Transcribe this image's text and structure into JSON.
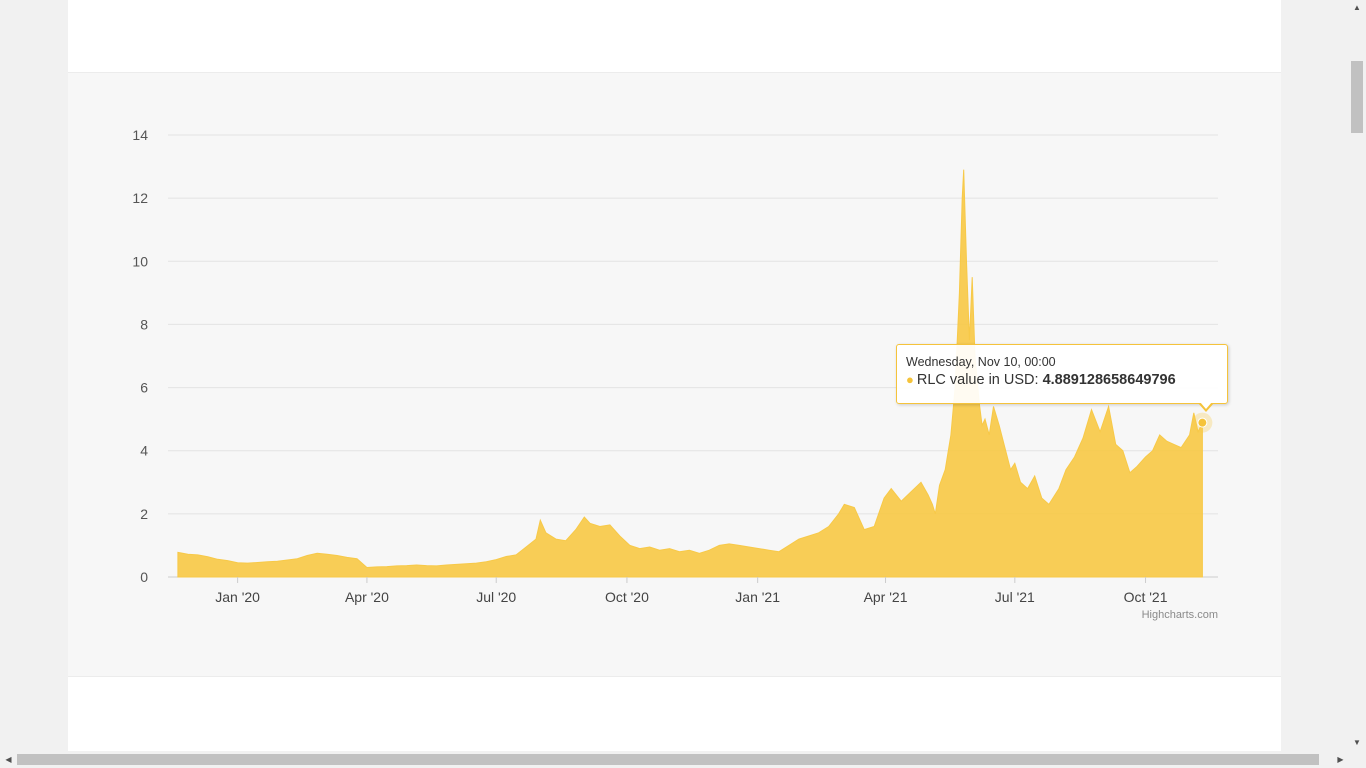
{
  "chart_data": {
    "type": "area",
    "title": "",
    "xlabel": "",
    "ylabel": "",
    "series": [
      {
        "name": "RLC value in USD",
        "color": "#f7c948",
        "points": [
          [
            "2019-11-20",
            0.78
          ],
          [
            "2019-11-27",
            0.72
          ],
          [
            "2019-12-04",
            0.7
          ],
          [
            "2019-12-11",
            0.64
          ],
          [
            "2019-12-18",
            0.56
          ],
          [
            "2019-12-25",
            0.52
          ],
          [
            "2020-01-01",
            0.45
          ],
          [
            "2020-01-08",
            0.44
          ],
          [
            "2020-01-15",
            0.46
          ],
          [
            "2020-01-22",
            0.48
          ],
          [
            "2020-01-29",
            0.5
          ],
          [
            "2020-02-05",
            0.54
          ],
          [
            "2020-02-12",
            0.58
          ],
          [
            "2020-02-19",
            0.68
          ],
          [
            "2020-02-26",
            0.75
          ],
          [
            "2020-03-04",
            0.72
          ],
          [
            "2020-03-11",
            0.68
          ],
          [
            "2020-03-18",
            0.62
          ],
          [
            "2020-03-25",
            0.58
          ],
          [
            "2020-04-01",
            0.3
          ],
          [
            "2020-04-08",
            0.32
          ],
          [
            "2020-04-15",
            0.33
          ],
          [
            "2020-04-22",
            0.35
          ],
          [
            "2020-04-29",
            0.36
          ],
          [
            "2020-05-06",
            0.38
          ],
          [
            "2020-05-13",
            0.36
          ],
          [
            "2020-05-20",
            0.35
          ],
          [
            "2020-05-27",
            0.38
          ],
          [
            "2020-06-03",
            0.4
          ],
          [
            "2020-06-10",
            0.42
          ],
          [
            "2020-06-17",
            0.44
          ],
          [
            "2020-06-24",
            0.48
          ],
          [
            "2020-07-01",
            0.55
          ],
          [
            "2020-07-08",
            0.65
          ],
          [
            "2020-07-15",
            0.7
          ],
          [
            "2020-07-22",
            0.95
          ],
          [
            "2020-07-29",
            1.2
          ],
          [
            "2020-08-01",
            1.8
          ],
          [
            "2020-08-05",
            1.4
          ],
          [
            "2020-08-12",
            1.2
          ],
          [
            "2020-08-19",
            1.15
          ],
          [
            "2020-08-26",
            1.5
          ],
          [
            "2020-09-01",
            1.9
          ],
          [
            "2020-09-05",
            1.7
          ],
          [
            "2020-09-12",
            1.6
          ],
          [
            "2020-09-19",
            1.65
          ],
          [
            "2020-09-26",
            1.3
          ],
          [
            "2020-10-03",
            1.0
          ],
          [
            "2020-10-10",
            0.9
          ],
          [
            "2020-10-17",
            0.95
          ],
          [
            "2020-10-24",
            0.85
          ],
          [
            "2020-10-31",
            0.9
          ],
          [
            "2020-11-07",
            0.8
          ],
          [
            "2020-11-14",
            0.85
          ],
          [
            "2020-11-21",
            0.75
          ],
          [
            "2020-11-28",
            0.85
          ],
          [
            "2020-12-05",
            1.0
          ],
          [
            "2020-12-12",
            1.05
          ],
          [
            "2020-12-19",
            1.0
          ],
          [
            "2020-12-26",
            0.95
          ],
          [
            "2021-01-02",
            0.9
          ],
          [
            "2021-01-09",
            0.85
          ],
          [
            "2021-01-16",
            0.8
          ],
          [
            "2021-01-23",
            1.0
          ],
          [
            "2021-01-30",
            1.2
          ],
          [
            "2021-02-06",
            1.3
          ],
          [
            "2021-02-13",
            1.4
          ],
          [
            "2021-02-20",
            1.6
          ],
          [
            "2021-02-27",
            2.0
          ],
          [
            "2021-03-03",
            2.3
          ],
          [
            "2021-03-10",
            2.2
          ],
          [
            "2021-03-17",
            1.5
          ],
          [
            "2021-03-24",
            1.6
          ],
          [
            "2021-03-31",
            2.5
          ],
          [
            "2021-04-05",
            2.8
          ],
          [
            "2021-04-12",
            2.4
          ],
          [
            "2021-04-19",
            2.7
          ],
          [
            "2021-04-26",
            3.0
          ],
          [
            "2021-05-01",
            2.6
          ],
          [
            "2021-05-04",
            2.3
          ],
          [
            "2021-05-06",
            2.0
          ],
          [
            "2021-05-09",
            2.9
          ],
          [
            "2021-05-13",
            3.4
          ],
          [
            "2021-05-17",
            4.5
          ],
          [
            "2021-05-20",
            6.0
          ],
          [
            "2021-05-23",
            9.0
          ],
          [
            "2021-05-25",
            12.0
          ],
          [
            "2021-05-26",
            12.9
          ],
          [
            "2021-05-28",
            10.0
          ],
          [
            "2021-05-30",
            7.5
          ],
          [
            "2021-06-01",
            9.5
          ],
          [
            "2021-06-03",
            7.0
          ],
          [
            "2021-06-06",
            5.5
          ],
          [
            "2021-06-08",
            4.8
          ],
          [
            "2021-06-10",
            5.0
          ],
          [
            "2021-06-13",
            4.5
          ],
          [
            "2021-06-16",
            5.4
          ],
          [
            "2021-06-20",
            4.8
          ],
          [
            "2021-06-24",
            4.1
          ],
          [
            "2021-06-28",
            3.4
          ],
          [
            "2021-07-01",
            3.6
          ],
          [
            "2021-07-05",
            3.0
          ],
          [
            "2021-07-10",
            2.8
          ],
          [
            "2021-07-15",
            3.2
          ],
          [
            "2021-07-20",
            2.5
          ],
          [
            "2021-07-25",
            2.3
          ],
          [
            "2021-08-01",
            2.8
          ],
          [
            "2021-08-06",
            3.4
          ],
          [
            "2021-08-12",
            3.8
          ],
          [
            "2021-08-18",
            4.4
          ],
          [
            "2021-08-24",
            5.3
          ],
          [
            "2021-08-30",
            4.6
          ],
          [
            "2021-09-05",
            5.4
          ],
          [
            "2021-09-10",
            4.2
          ],
          [
            "2021-09-15",
            4.0
          ],
          [
            "2021-09-20",
            3.3
          ],
          [
            "2021-09-25",
            3.5
          ],
          [
            "2021-10-01",
            3.8
          ],
          [
            "2021-10-06",
            4.0
          ],
          [
            "2021-10-11",
            4.5
          ],
          [
            "2021-10-16",
            4.3
          ],
          [
            "2021-10-21",
            4.2
          ],
          [
            "2021-10-26",
            4.1
          ],
          [
            "2021-11-01",
            4.5
          ],
          [
            "2021-11-04",
            5.2
          ],
          [
            "2021-11-07",
            4.6
          ],
          [
            "2021-11-10",
            4.889128658649796
          ]
        ]
      }
    ],
    "ylim": [
      0,
      14
    ],
    "yticks": [
      "0",
      "2",
      "4",
      "6",
      "8",
      "10",
      "12",
      "14"
    ],
    "xlim": [
      "2019-11-13",
      "2021-11-21"
    ],
    "xticks": [
      {
        "label": "Jan '20",
        "date": "2020-01-01"
      },
      {
        "label": "Apr '20",
        "date": "2020-04-01"
      },
      {
        "label": "Jul '20",
        "date": "2020-07-01"
      },
      {
        "label": "Oct '20",
        "date": "2020-10-01"
      },
      {
        "label": "Jan '21",
        "date": "2021-01-01"
      },
      {
        "label": "Apr '21",
        "date": "2021-04-01"
      },
      {
        "label": "Jul '21",
        "date": "2021-07-01"
      },
      {
        "label": "Oct '21",
        "date": "2021-10-01"
      }
    ],
    "grid": true,
    "legend": "none",
    "credit": "Highcharts.com",
    "tooltip": {
      "date": "Wednesday, Nov 10, 00:00",
      "series_label": "RLC value in USD:",
      "value": "4.889128658649796",
      "point_date": "2021-11-10",
      "point_value": 4.889128658649796
    }
  }
}
